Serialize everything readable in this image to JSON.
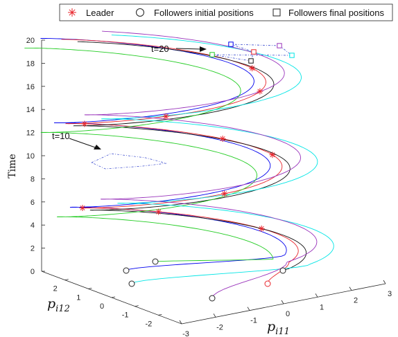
{
  "chart_data": {
    "type": "line",
    "subtype": "3d-trajectories",
    "title": "",
    "xlabel": "p_i11",
    "ylabel": "p_i12",
    "zlabel": "Time",
    "xlim": [
      -3,
      3
    ],
    "ylim": [
      -3,
      3
    ],
    "zlim": [
      0,
      20
    ],
    "xticks": [
      "-3",
      "-2",
      "-1",
      "0",
      "1",
      "2",
      "3"
    ],
    "yticks": [
      "-2",
      "-1",
      "0",
      "1",
      "2"
    ],
    "zticks": [
      "0",
      "2",
      "4",
      "6",
      "8",
      "10",
      "12",
      "14",
      "16",
      "18",
      "20"
    ],
    "grid": false,
    "legend": {
      "placement": "top",
      "entries": [
        {
          "label": "Leader",
          "marker": "asterisk",
          "color": "#e8232a"
        },
        {
          "label": "Followers initial positions",
          "marker": "circle",
          "color": "#222222"
        },
        {
          "label": "Followers final positions",
          "marker": "square",
          "color": "#222222"
        }
      ]
    },
    "leader_points": [
      {
        "t": 2.8
      },
      {
        "t": 4.0
      },
      {
        "t": 5.4
      },
      {
        "t": 7.8
      },
      {
        "t": 9.6
      },
      {
        "t": 10.4
      },
      {
        "t": 12.1
      },
      {
        "t": 14.6
      },
      {
        "t": 16.0
      },
      {
        "t": 17.0
      }
    ],
    "annotations": [
      {
        "text": "t=10",
        "t": 10
      },
      {
        "text": "t=20",
        "t": 20
      }
    ],
    "series": [
      {
        "color": "#0000ee"
      },
      {
        "color": "#e8232a"
      },
      {
        "color": "#111111"
      },
      {
        "color": "#22cc22"
      },
      {
        "color": "#00e5e5"
      },
      {
        "color": "#9933bb"
      }
    ]
  },
  "legend_labels": {
    "leader": "Leader",
    "initial": "Followers initial positions",
    "final": "Followers final positions"
  },
  "labels": {
    "time": "Time",
    "p_i11_base": "p",
    "p_i11_sub": "i11",
    "p_i12_base": "p",
    "p_i12_sub": "i12",
    "annot_t10": "t=10",
    "annot_t20": "t=20"
  }
}
